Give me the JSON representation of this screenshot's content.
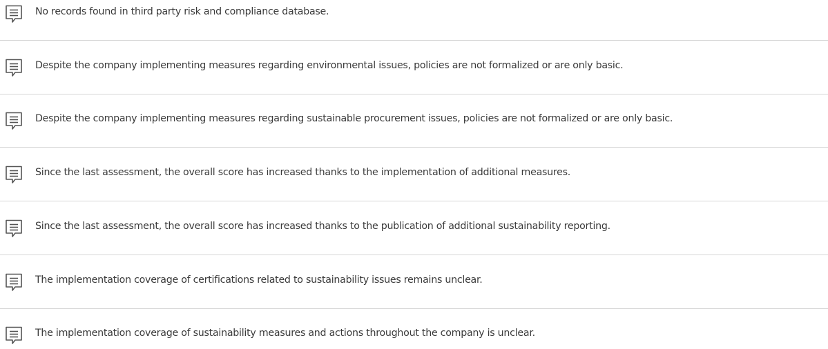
{
  "comments": [
    "No records found in third party risk and compliance database.",
    "Despite the company implementing measures regarding environmental issues, policies are not formalized or are only basic.",
    "Despite the company implementing measures regarding sustainable procurement issues, policies are not formalized or are only basic.",
    "Since the last assessment, the overall score has increased thanks to the implementation of additional measures.",
    "Since the last assessment, the overall score has increased thanks to the publication of additional sustainability reporting.",
    "The implementation coverage of certifications related to sustainability issues remains unclear.",
    "The implementation coverage of sustainability measures and actions throughout the company is unclear."
  ]
}
